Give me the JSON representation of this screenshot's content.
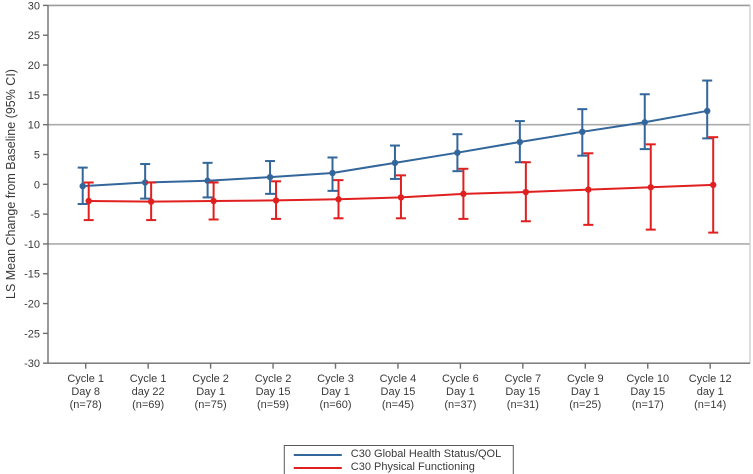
{
  "chart_data": {
    "type": "line",
    "ylabel": "LS Mean Change from Baseline (95% CI)",
    "ylim": [
      -30,
      30
    ],
    "ytick_step": 5,
    "reference_lines": [
      10,
      -10
    ],
    "grid": false,
    "legend_position": "bottom-center",
    "error_bars": "95% CI",
    "categories": [
      [
        "Cycle 1",
        "Day 8",
        "(n=78)"
      ],
      [
        "Cycle 1",
        "day 22",
        "(n=69)"
      ],
      [
        "Cycle 2",
        "Day 1",
        "(n=75)"
      ],
      [
        "Cycle 2",
        "Day 15",
        "(n=59)"
      ],
      [
        "Cycle 3",
        "Day 1",
        "(n=60)"
      ],
      [
        "Cycle 4",
        "Day 15",
        "(n=45)"
      ],
      [
        "Cycle 6",
        "Day 1",
        "(n=37)"
      ],
      [
        "Cycle 7",
        "Day 15",
        "(n=31)"
      ],
      [
        "Cycle 9",
        "Day 1",
        "(n=25)"
      ],
      [
        "Cycle 10",
        "Day 15",
        "(n=17)"
      ],
      [
        "Cycle 12",
        "day 1",
        "(n=14)"
      ]
    ],
    "series": [
      {
        "name": "C30 Global Health Status/QOL",
        "color": "#33669B",
        "values": [
          -0.3,
          0.3,
          0.6,
          1.2,
          1.9,
          3.6,
          5.3,
          7.1,
          8.8,
          10.4,
          12.3
        ],
        "ci_high": [
          2.8,
          3.4,
          3.6,
          3.9,
          4.5,
          6.5,
          8.4,
          10.6,
          12.6,
          15.1,
          17.4
        ],
        "ci_low": [
          -3.3,
          -2.4,
          -2.2,
          -1.6,
          -1.1,
          0.9,
          2.2,
          3.7,
          4.8,
          5.9,
          7.7
        ]
      },
      {
        "name": "C30 Physical Functioning",
        "color": "#E01F1F",
        "values": [
          -2.8,
          -2.9,
          -2.8,
          -2.7,
          -2.5,
          -2.2,
          -1.6,
          -1.3,
          -0.9,
          -0.5,
          -0.1
        ],
        "ci_high": [
          0.3,
          0.3,
          0.3,
          0.5,
          0.7,
          1.5,
          2.6,
          3.7,
          5.2,
          6.7,
          7.9
        ],
        "ci_low": [
          -6.0,
          -6.0,
          -5.9,
          -5.8,
          -5.7,
          -5.7,
          -5.8,
          -6.2,
          -6.8,
          -7.6,
          -8.1
        ]
      }
    ]
  }
}
